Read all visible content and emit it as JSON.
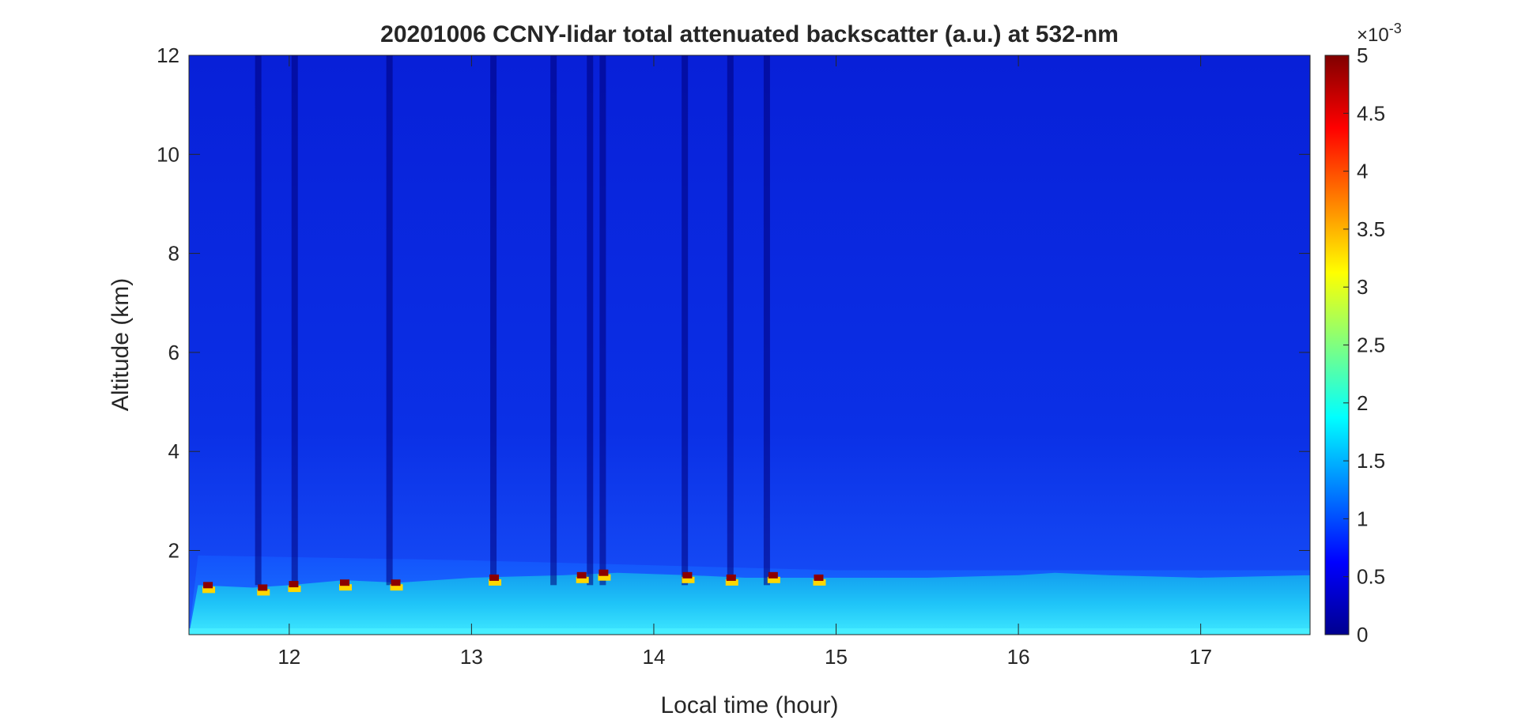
{
  "chart_data": {
    "type": "heatmap",
    "title": "20201006 CCNY-lidar total attenuated backscatter (a.u.) at 532-nm",
    "xlabel": "Local time (hour)",
    "ylabel": "Altitude (km)",
    "xlim": [
      11.45,
      17.6
    ],
    "ylim": [
      0.3,
      12
    ],
    "xticks": [
      12,
      13,
      14,
      15,
      16,
      17
    ],
    "yticks": [
      2,
      4,
      6,
      8,
      10,
      12
    ],
    "colorbar": {
      "colormap": "jet",
      "clim": [
        0,
        0.005
      ],
      "exponent_label": "×10",
      "exponent_power": "-3",
      "ticks": [
        0,
        0.5,
        1,
        1.5,
        2,
        2.5,
        3,
        3.5,
        4,
        4.5,
        5
      ],
      "tick_labels": [
        "0",
        "0.5",
        "1",
        "1.5",
        "2",
        "2.5",
        "3",
        "3.5",
        "4",
        "4.5",
        "5"
      ]
    },
    "boundary_layer_top_km": [
      [
        11.5,
        1.3
      ],
      [
        11.8,
        1.25
      ],
      [
        12.0,
        1.3
      ],
      [
        12.3,
        1.4
      ],
      [
        12.6,
        1.35
      ],
      [
        13.0,
        1.45
      ],
      [
        13.5,
        1.5
      ],
      [
        13.8,
        1.55
      ],
      [
        14.2,
        1.5
      ],
      [
        14.5,
        1.45
      ],
      [
        15.0,
        1.45
      ],
      [
        15.5,
        1.45
      ],
      [
        16.0,
        1.5
      ],
      [
        16.2,
        1.55
      ],
      [
        16.5,
        1.5
      ],
      [
        17.0,
        1.45
      ],
      [
        17.6,
        1.5
      ]
    ],
    "residual_layer_top_km": [
      [
        11.5,
        1.9
      ],
      [
        13.0,
        1.8
      ],
      [
        14.0,
        1.7
      ],
      [
        15.0,
        1.6
      ],
      [
        17.6,
        1.6
      ]
    ],
    "cloud_events": [
      {
        "time": 11.55,
        "altitude_km": 1.3
      },
      {
        "time": 11.85,
        "altitude_km": 1.25
      },
      {
        "time": 12.02,
        "altitude_km": 1.32
      },
      {
        "time": 12.3,
        "altitude_km": 1.35
      },
      {
        "time": 12.58,
        "altitude_km": 1.35
      },
      {
        "time": 13.12,
        "altitude_km": 1.45
      },
      {
        "time": 13.6,
        "altitude_km": 1.5
      },
      {
        "time": 13.72,
        "altitude_km": 1.55
      },
      {
        "time": 14.18,
        "altitude_km": 1.5
      },
      {
        "time": 14.42,
        "altitude_km": 1.45
      },
      {
        "time": 14.65,
        "altitude_km": 1.5
      },
      {
        "time": 14.9,
        "altitude_km": 1.45
      }
    ],
    "attenuation_columns": [
      11.83,
      12.03,
      12.55,
      13.12,
      13.45,
      13.65,
      13.72,
      14.17,
      14.42,
      14.62
    ]
  }
}
